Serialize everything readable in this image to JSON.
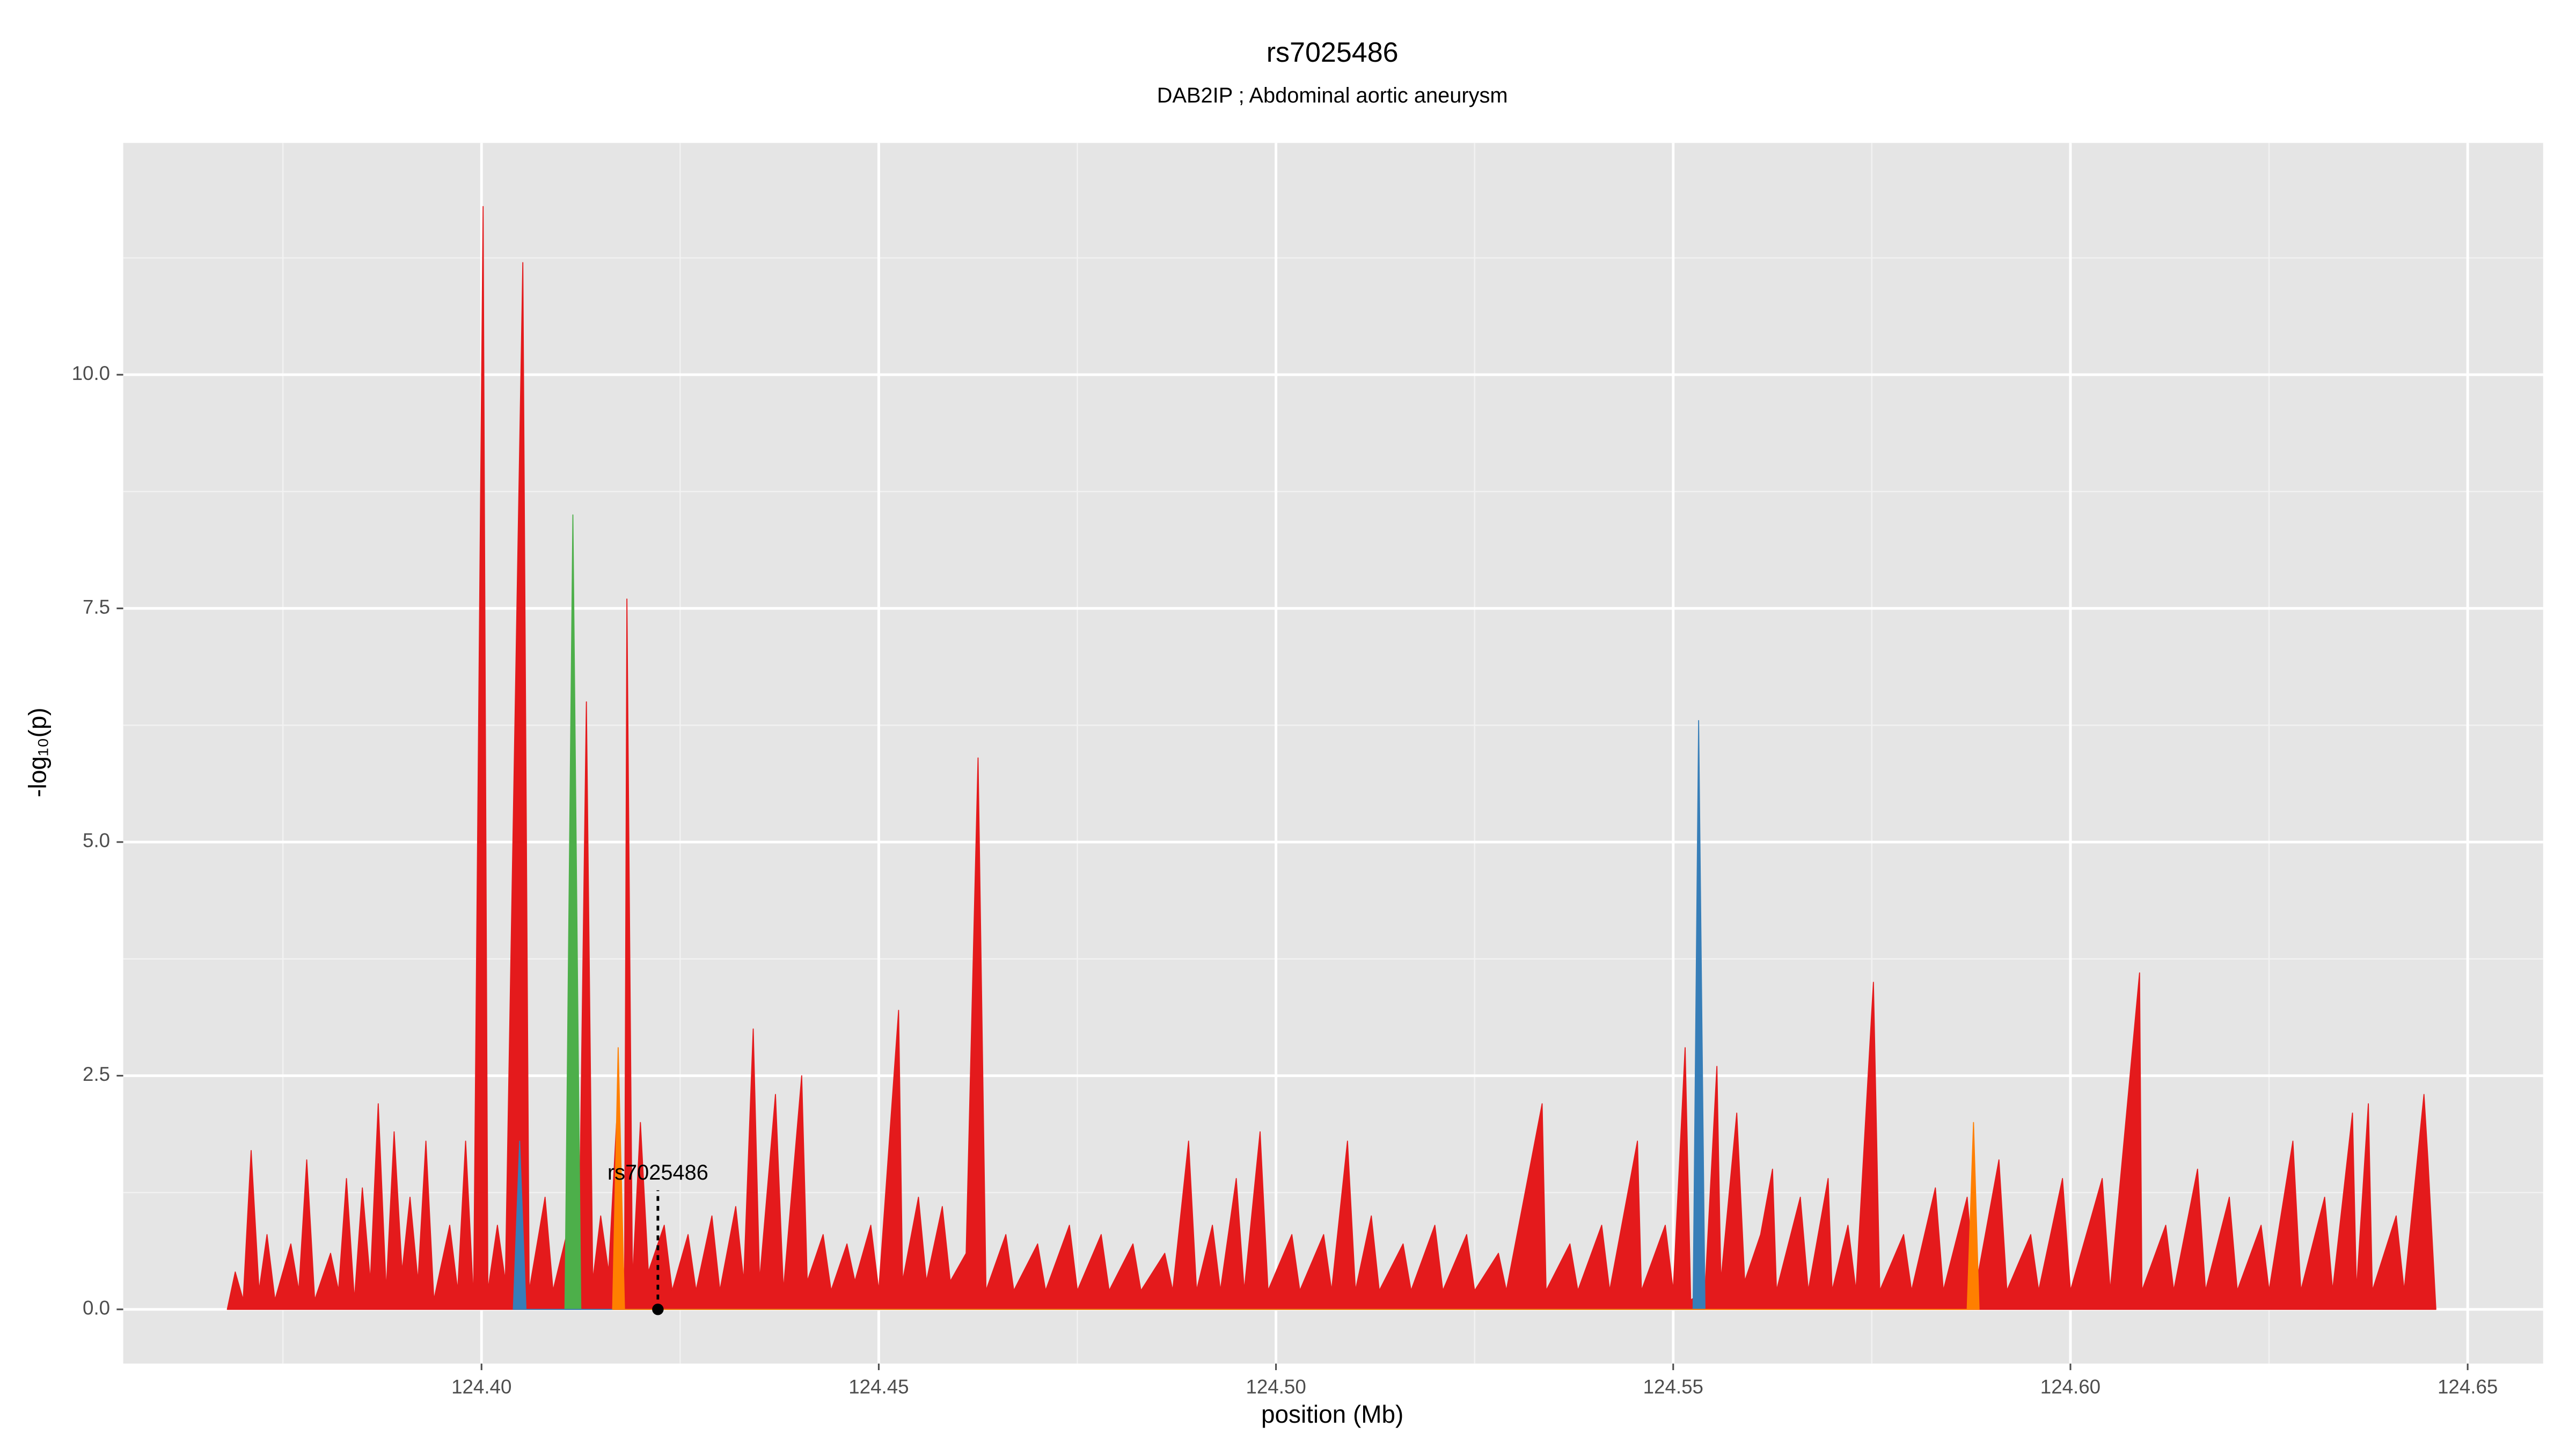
{
  "chart_data": {
    "type": "area",
    "title": "rs7025486",
    "subtitle": "DAB2IP ; Abdominal aortic aneurysm",
    "x_label": "position (Mb)",
    "y_label": "-log₁₀(p)",
    "xlim": [
      124.3549,
      124.6595
    ],
    "ylim": [
      -0.58,
      12.48
    ],
    "xticks": [
      {
        "value": 124.4,
        "label": "124.40"
      },
      124.45,
      {
        "value": 124.5,
        "label": "124.50"
      },
      124.55,
      {
        "value": 124.6,
        "label": "124.60"
      },
      124.65
    ],
    "yticks": [
      {
        "value": 0,
        "label": "0.0"
      },
      2.5,
      {
        "value": 5,
        "label": "5.0"
      },
      7.5,
      {
        "value": 10,
        "label": "10.0"
      }
    ],
    "x_minor_ticks": [
      124.375,
      124.425,
      124.475,
      124.525,
      124.575,
      124.625
    ],
    "y_minor_ticks": [
      1.25,
      3.75,
      6.25,
      8.75,
      11.25
    ],
    "grid": true,
    "series": [
      {
        "color": "#e41a1c",
        "x": [
          124.368,
          124.369,
          124.37,
          124.371,
          124.372,
          124.373,
          124.374,
          124.376,
          124.377,
          124.378,
          124.379,
          124.381,
          124.382,
          124.383,
          124.384,
          124.385,
          124.386,
          124.387,
          124.388,
          124.389,
          124.39,
          124.391,
          124.392,
          124.393,
          124.394,
          124.396,
          124.397,
          124.398,
          124.399,
          124.4002,
          124.4008,
          124.402,
          124.403,
          124.4052,
          124.406,
          124.408,
          124.409,
          124.411,
          124.4122,
          124.4132,
          124.414,
          124.415,
          124.416,
          124.417,
          124.418,
          124.4183,
          124.419,
          124.42,
          124.421,
          124.423,
          124.424,
          124.426,
          124.427,
          124.429,
          124.43,
          124.432,
          124.433,
          124.4342,
          124.435,
          124.437,
          124.438,
          124.4403,
          124.441,
          124.443,
          124.444,
          124.446,
          124.447,
          124.449,
          124.45,
          124.4525,
          124.453,
          124.455,
          124.456,
          124.458,
          124.459,
          124.461,
          124.4625,
          124.4635,
          124.466,
          124.467,
          124.47,
          124.471,
          124.474,
          124.475,
          124.478,
          124.479,
          124.482,
          124.483,
          124.486,
          124.487,
          124.489,
          124.49,
          124.492,
          124.493,
          124.495,
          124.496,
          124.498,
          124.499,
          124.502,
          124.503,
          124.506,
          124.507,
          124.509,
          124.51,
          124.512,
          124.513,
          124.516,
          124.517,
          124.52,
          124.521,
          124.524,
          124.525,
          124.528,
          124.529,
          124.5335,
          124.534,
          124.537,
          124.538,
          124.541,
          124.542,
          124.5455,
          124.546,
          124.549,
          124.55,
          124.5515,
          124.5522,
          124.554,
          124.5555,
          124.556,
          124.558,
          124.559,
          124.561,
          124.5625,
          124.563,
          124.566,
          124.567,
          124.5695,
          124.57,
          124.572,
          124.573,
          124.5752,
          124.576,
          124.579,
          124.58,
          124.583,
          124.584,
          124.587,
          124.588,
          124.591,
          124.592,
          124.595,
          124.596,
          124.599,
          124.6,
          124.604,
          124.605,
          124.6087,
          124.609,
          124.612,
          124.613,
          124.616,
          124.617,
          124.62,
          124.621,
          124.624,
          124.625,
          124.628,
          124.629,
          124.632,
          124.633,
          124.6355,
          124.636,
          124.6375,
          124.638,
          124.641,
          124.642,
          124.6445,
          124.645,
          124.646
        ],
        "values": [
          0,
          0.4,
          0.1,
          1.7,
          0.2,
          0.8,
          0.1,
          0.7,
          0.2,
          1.6,
          0.1,
          0.6,
          0.2,
          1.4,
          0.1,
          1.3,
          0.3,
          2.2,
          0.2,
          1.9,
          0.4,
          1.2,
          0.3,
          1.8,
          0.1,
          0.9,
          0.2,
          1.8,
          0.1,
          11.8,
          0.2,
          0.9,
          0.3,
          11.2,
          0.2,
          1.2,
          0.2,
          0.9,
          0.1,
          6.5,
          0.3,
          1.0,
          0.4,
          2.0,
          0.2,
          7.6,
          0.3,
          2.0,
          0.4,
          0.9,
          0.2,
          0.8,
          0.2,
          1.0,
          0.2,
          1.1,
          0.3,
          3.0,
          0.3,
          2.3,
          0.2,
          2.5,
          0.3,
          0.8,
          0.2,
          0.7,
          0.3,
          0.9,
          0.2,
          3.2,
          0.3,
          1.2,
          0.3,
          1.1,
          0.3,
          0.6,
          5.9,
          0.2,
          0.8,
          0.2,
          0.7,
          0.2,
          0.9,
          0.2,
          0.8,
          0.2,
          0.7,
          0.2,
          0.6,
          0.2,
          1.8,
          0.2,
          0.9,
          0.2,
          1.4,
          0.2,
          1.9,
          0.2,
          0.8,
          0.2,
          0.8,
          0.2,
          1.8,
          0.2,
          1.0,
          0.2,
          0.7,
          0.2,
          0.9,
          0.2,
          0.8,
          0.2,
          0.6,
          0.2,
          2.2,
          0.2,
          0.7,
          0.2,
          0.9,
          0.2,
          1.8,
          0.2,
          0.9,
          0.2,
          2.8,
          0.1,
          0.2,
          2.6,
          0.3,
          2.1,
          0.3,
          0.8,
          1.5,
          0.2,
          1.2,
          0.2,
          1.4,
          0.2,
          0.9,
          0.2,
          3.5,
          0.2,
          0.8,
          0.2,
          1.3,
          0.2,
          1.2,
          0.2,
          1.6,
          0.2,
          0.8,
          0.2,
          1.4,
          0.2,
          1.4,
          0.2,
          3.6,
          0.2,
          0.9,
          0.2,
          1.5,
          0.2,
          1.2,
          0.2,
          0.9,
          0.2,
          1.8,
          0.2,
          1.2,
          0.2,
          2.1,
          0.2,
          2.2,
          0.2,
          1.0,
          0.2,
          2.3,
          1.6,
          0
        ]
      },
      {
        "color": "#4daf4a",
        "x": [
          124.4105,
          124.4115,
          124.4125
        ],
        "values": [
          0,
          8.5,
          0
        ]
      },
      {
        "color": "#377eb8",
        "x": [
          124.404,
          124.4048,
          124.4056,
          124.5525,
          124.5532,
          124.554
        ],
        "values": [
          0,
          1.8,
          0,
          0,
          6.3,
          0
        ]
      },
      {
        "color": "#ff7f00",
        "x": [
          124.4165,
          124.4172,
          124.418,
          124.587,
          124.5878,
          124.5885
        ],
        "values": [
          0,
          2.8,
          0,
          0,
          2.0,
          0
        ]
      }
    ],
    "annotation": {
      "text": "rs7025486",
      "x": 124.4222,
      "y": 1.45,
      "point": [
        124.4222,
        0
      ]
    }
  }
}
